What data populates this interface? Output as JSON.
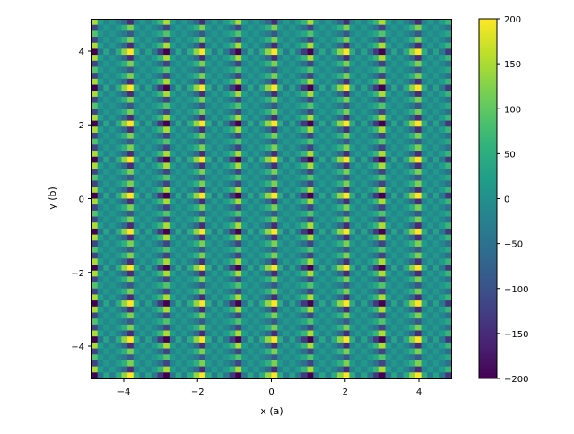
{
  "chart_data": {
    "type": "heatmap",
    "title": "",
    "xlabel": "x (a)",
    "ylabel": "y (b)",
    "xlim": [
      -4.875,
      4.875
    ],
    "ylim": [
      -4.875,
      4.875
    ],
    "grid": false,
    "colormap": "viridis",
    "clim": [
      -200,
      200
    ],
    "x_ticks": [
      {
        "v": -4,
        "label": "−4"
      },
      {
        "v": -2,
        "label": "−2"
      },
      {
        "v": 0,
        "label": "0"
      },
      {
        "v": 2,
        "label": "2"
      },
      {
        "v": 4,
        "label": "4"
      }
    ],
    "y_ticks": [
      {
        "v": -4,
        "label": "−4"
      },
      {
        "v": -2,
        "label": "−2"
      },
      {
        "v": 0,
        "label": "0"
      },
      {
        "v": 2,
        "label": "2"
      },
      {
        "v": 4,
        "label": "4"
      }
    ],
    "colorbar_ticks": [
      {
        "v": 200,
        "label": "200"
      },
      {
        "v": 150,
        "label": "150"
      },
      {
        "v": 100,
        "label": "100"
      },
      {
        "v": 50,
        "label": "50"
      },
      {
        "v": 0,
        "label": "0"
      },
      {
        "v": -50,
        "label": "−50"
      },
      {
        "v": -100,
        "label": "−100"
      },
      {
        "v": -150,
        "label": "−150"
      },
      {
        "v": -200,
        "label": "−200"
      }
    ],
    "grid_size": [
      60,
      60
    ],
    "z_separable": {
      "x_factor": [
        -1,
        -0.15,
        0.12,
        -0.1,
        0.15,
        0.45,
        1,
        0.15,
        -0.12,
        0.1,
        -0.15,
        -0.45,
        -1,
        -0.15,
        0.12,
        -0.1,
        0.15,
        0.45,
        1,
        0.15,
        -0.12,
        0.1,
        -0.15,
        -0.45,
        -1,
        -0.15,
        0.12,
        -0.1,
        0.15,
        0.45,
        1,
        0.15,
        -0.12,
        0.1,
        -0.15,
        -0.45,
        -1,
        -0.15,
        0.12,
        -0.1,
        0.15,
        0.45,
        1,
        0.15,
        -0.12,
        0.1,
        -0.15,
        -0.45,
        -1,
        -0.15,
        0.12,
        -0.1,
        0.15,
        0.45,
        1,
        0.15,
        -0.12,
        0.1,
        -0.15,
        -0.45
      ],
      "y_factor_top_to_bottom": [
        -150,
        120,
        -90,
        120,
        -150,
        300,
        -150,
        120,
        -90,
        120,
        -150,
        300,
        -150,
        120,
        -90,
        120,
        -150,
        300,
        -150,
        120,
        -90,
        120,
        -150,
        300,
        -150,
        120,
        -90,
        120,
        -150,
        300,
        -150,
        120,
        -90,
        120,
        -150,
        300,
        -150,
        120,
        -90,
        120,
        -150,
        300,
        -150,
        120,
        -90,
        120,
        -150,
        300,
        -150,
        120,
        -90,
        120,
        -150,
        300,
        -150,
        120,
        -90,
        120,
        -150,
        300
      ]
    }
  }
}
